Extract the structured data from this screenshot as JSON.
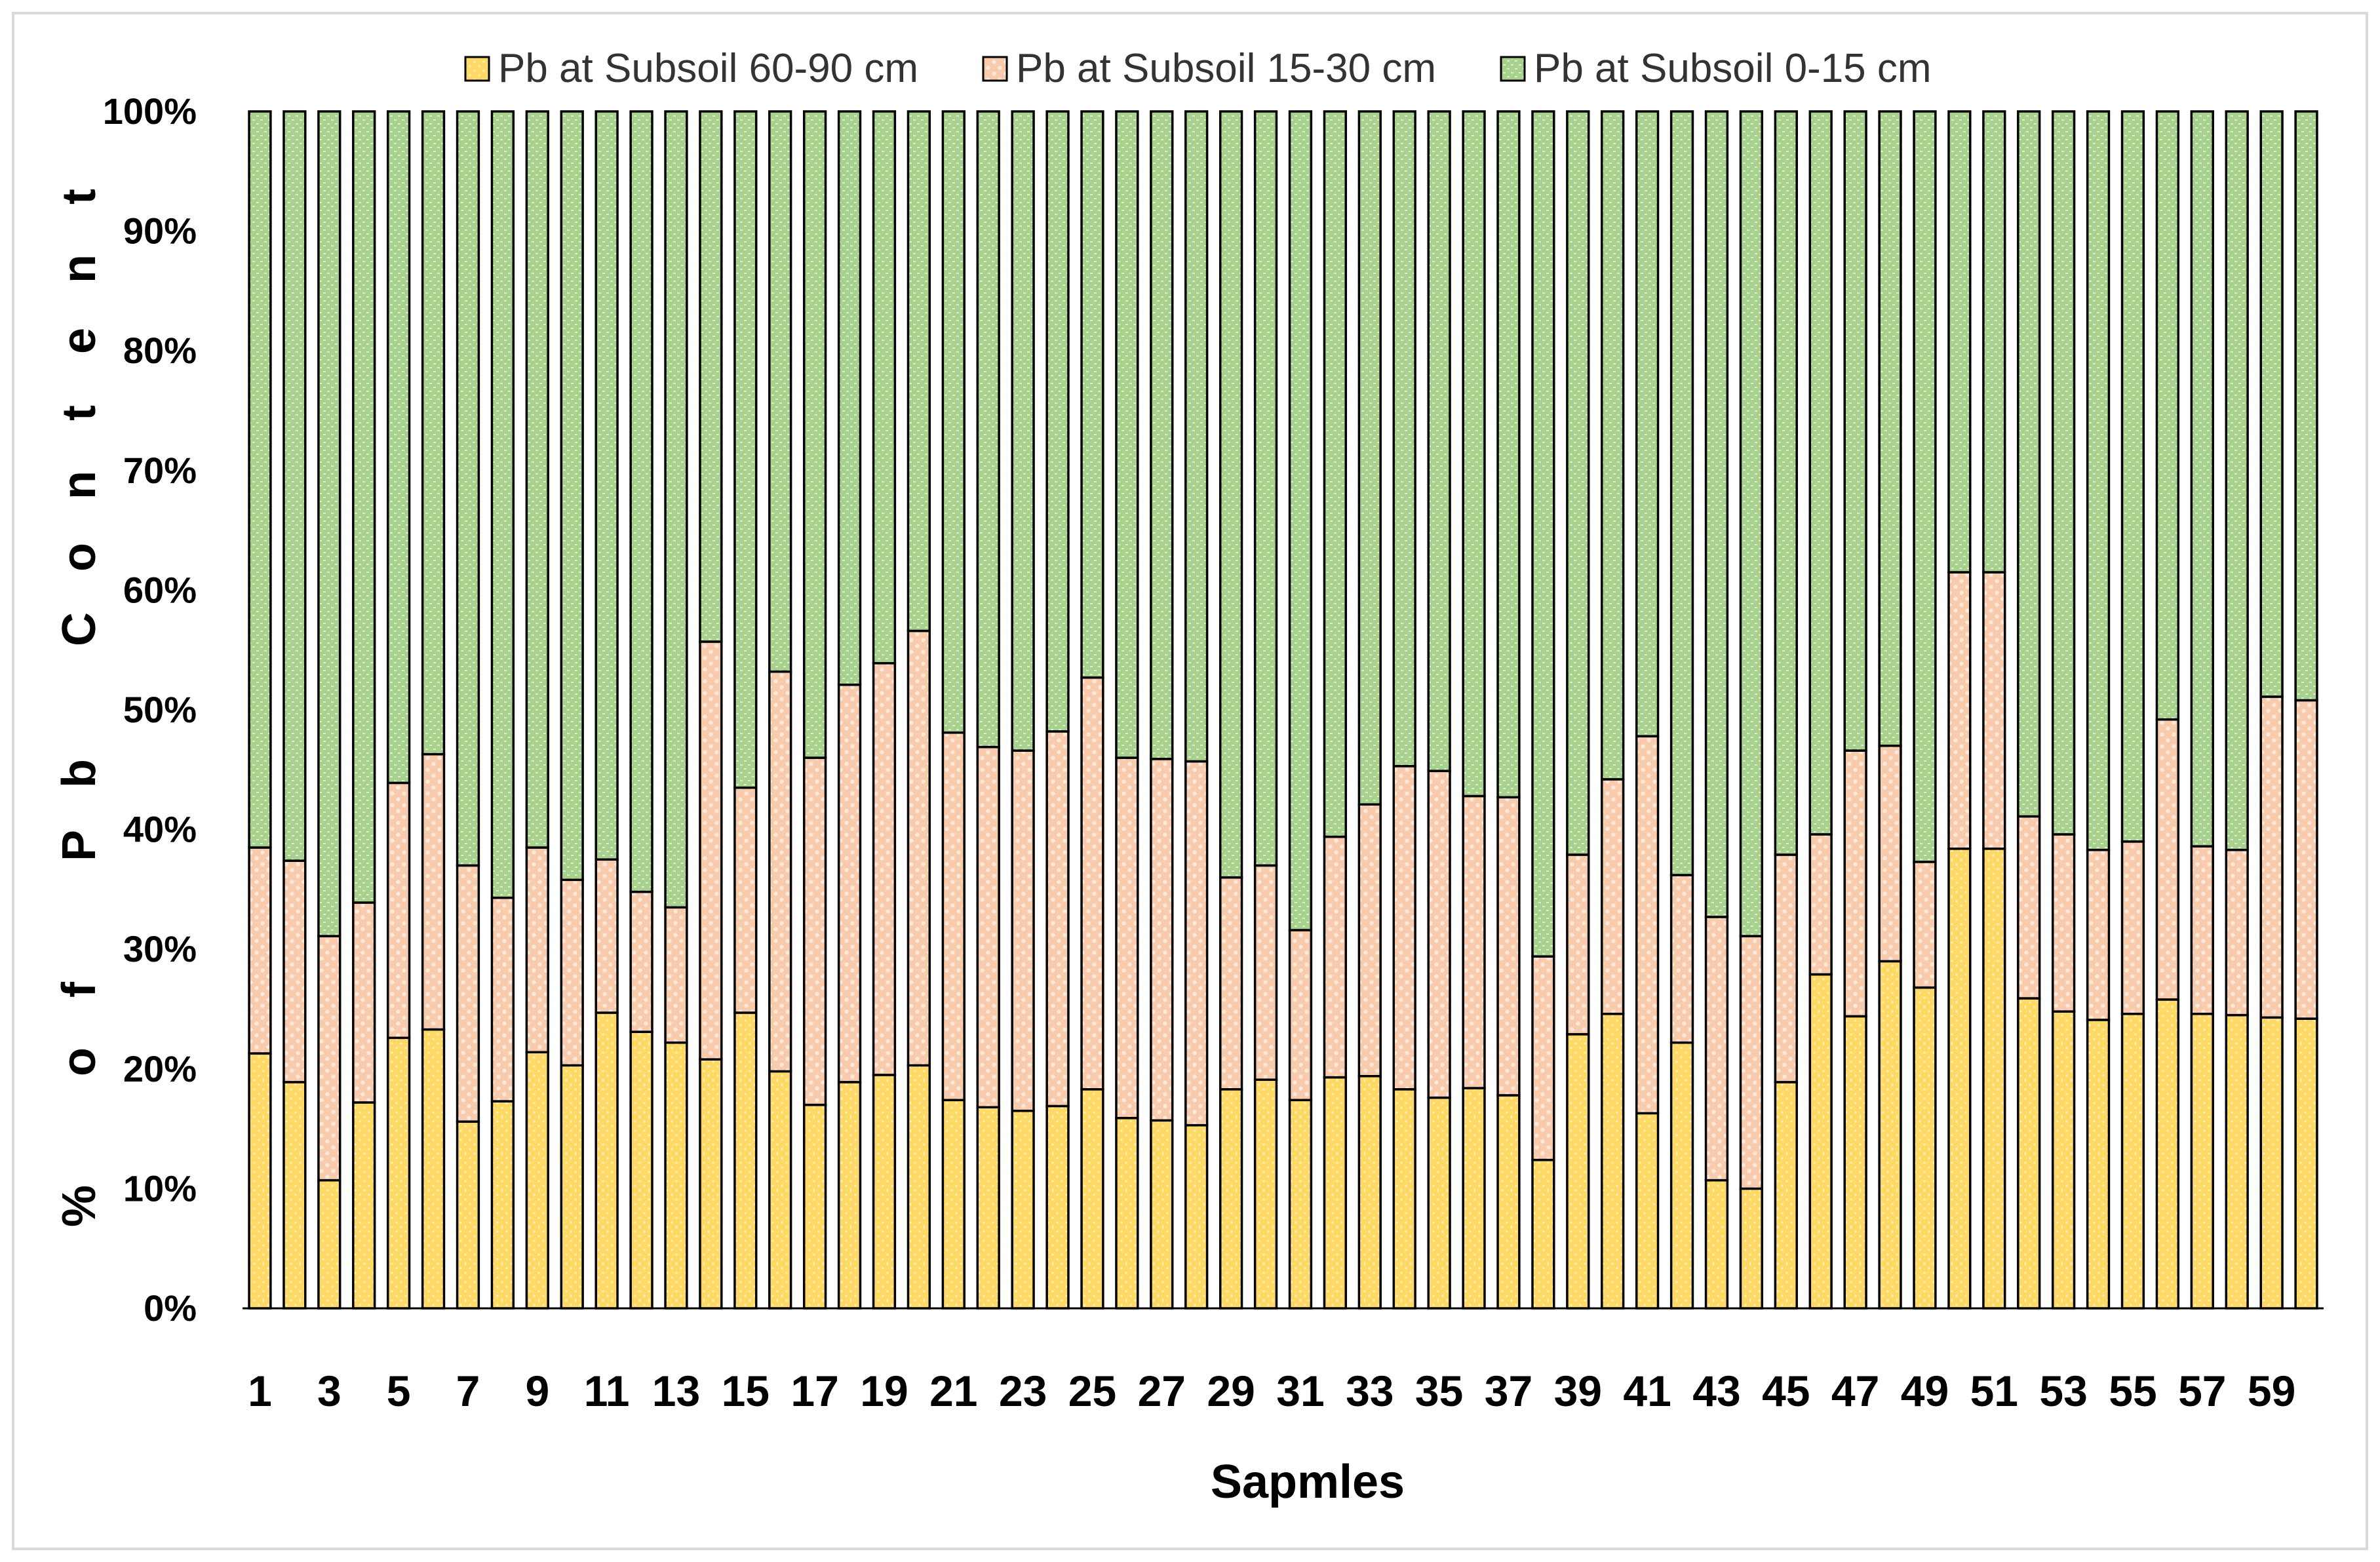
{
  "chart_data": {
    "type": "bar",
    "stacked": true,
    "percent": true,
    "x": [
      1,
      2,
      3,
      4,
      5,
      6,
      7,
      8,
      9,
      10,
      11,
      12,
      13,
      14,
      15,
      16,
      17,
      18,
      19,
      20,
      21,
      22,
      23,
      24,
      25,
      26,
      27,
      28,
      29,
      30,
      31,
      32,
      33,
      34,
      35,
      36,
      37,
      38,
      39,
      40,
      41,
      42,
      43,
      44,
      45,
      46,
      47,
      48,
      49,
      50,
      51,
      52,
      53,
      54,
      55,
      56,
      57,
      58,
      59,
      60
    ],
    "x_tick_labels": [
      "1",
      "3",
      "5",
      "7",
      "9",
      "11",
      "13",
      "15",
      "17",
      "19",
      "21",
      "23",
      "25",
      "27",
      "29",
      "31",
      "33",
      "35",
      "37",
      "39",
      "41",
      "43",
      "45",
      "47",
      "49",
      "51",
      "53",
      "55",
      "57",
      "59"
    ],
    "y_tick_labels": [
      "0%",
      "10%",
      "20%",
      "30%",
      "40%",
      "50%",
      "60%",
      "70%",
      "80%",
      "90%",
      "100%"
    ],
    "ylim": [
      0,
      100
    ],
    "xlabel": "Sapmles",
    "ylabel": "% of Pb Content",
    "legend_position": "top",
    "grid": false,
    "series": [
      {
        "name": "Pb at Subsoil 60-90 cm",
        "color": "#ffd966",
        "values": [
          21.3,
          18.9,
          10.7,
          17.2,
          22.6,
          23.3,
          15.6,
          17.3,
          21.4,
          20.3,
          24.7,
          23.1,
          22.2,
          20.8,
          24.7,
          19.8,
          17.0,
          18.9,
          19.5,
          20.3,
          17.4,
          16.8,
          16.5,
          16.9,
          18.3,
          15.9,
          15.7,
          15.3,
          18.3,
          19.1,
          17.4,
          19.3,
          19.4,
          18.3,
          17.6,
          18.4,
          17.8,
          12.4,
          22.9,
          24.6,
          16.3,
          22.2,
          10.7,
          10.0,
          18.9,
          27.9,
          24.4,
          29.0,
          26.8,
          38.4,
          38.4,
          25.9,
          24.8,
          24.1,
          24.6,
          25.8,
          24.6,
          24.5,
          24.3,
          24.2
        ]
      },
      {
        "name": "Pb at Subsoil 15-30 cm",
        "color": "#f8cbad",
        "values": [
          17.2,
          18.5,
          20.4,
          16.7,
          21.3,
          23.0,
          21.4,
          17.0,
          17.1,
          15.5,
          12.8,
          11.7,
          11.3,
          34.9,
          18.8,
          33.4,
          29.0,
          33.2,
          34.4,
          36.3,
          30.7,
          30.1,
          30.1,
          31.3,
          34.4,
          30.1,
          30.2,
          30.4,
          17.7,
          17.9,
          14.2,
          20.1,
          22.7,
          27.0,
          27.3,
          24.4,
          24.9,
          17.0,
          15.0,
          19.6,
          31.5,
          14.0,
          22.0,
          21.1,
          19.0,
          11.7,
          22.2,
          18.0,
          10.5,
          23.1,
          23.1,
          15.2,
          14.8,
          14.2,
          14.4,
          23.4,
          14.0,
          13.8,
          26.8,
          26.6
        ]
      },
      {
        "name": "Pb at Subsoil 0-15 cm",
        "color": "#a9d18e",
        "values": [
          61.5,
          62.6,
          68.9,
          66.1,
          56.1,
          53.7,
          63.0,
          65.7,
          61.5,
          64.2,
          62.5,
          65.2,
          66.5,
          44.3,
          56.5,
          46.8,
          54.0,
          47.9,
          46.1,
          43.4,
          51.9,
          53.1,
          53.4,
          51.8,
          47.3,
          54.0,
          54.1,
          54.3,
          64.0,
          63.0,
          68.4,
          60.6,
          57.9,
          54.7,
          55.1,
          57.2,
          57.3,
          70.6,
          62.1,
          55.8,
          52.2,
          63.8,
          67.3,
          68.9,
          62.1,
          60.4,
          53.4,
          53.0,
          62.7,
          38.5,
          38.5,
          58.9,
          60.4,
          61.7,
          61.0,
          50.8,
          61.4,
          61.7,
          48.9,
          49.2
        ]
      }
    ]
  }
}
